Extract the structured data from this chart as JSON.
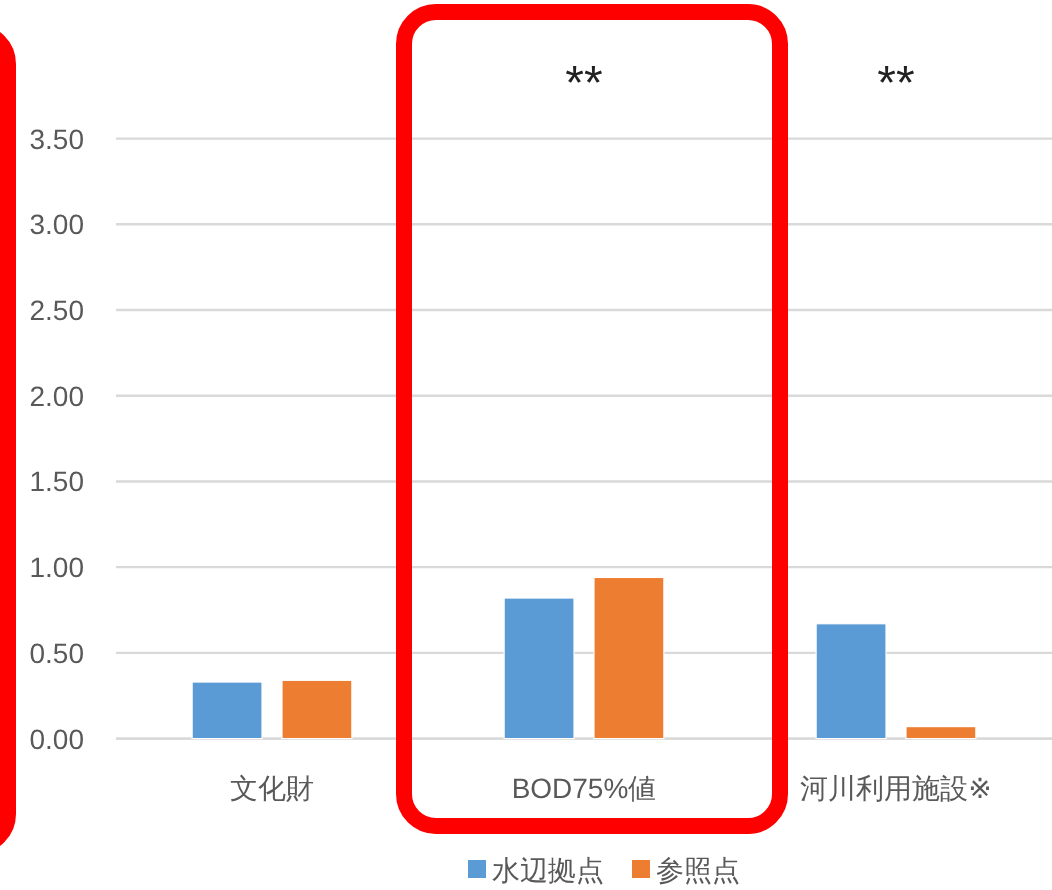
{
  "chart_data": {
    "type": "bar",
    "categories": [
      "文化財",
      "BOD75%値",
      "河川利用施設※"
    ],
    "series": [
      {
        "name": "水辺拠点",
        "color": "#5b9bd5",
        "values": [
          0.33,
          0.82,
          0.67
        ]
      },
      {
        "name": "参照点",
        "color": "#ed7d31",
        "values": [
          0.34,
          0.94,
          0.07
        ]
      }
    ],
    "ylim": [
      0,
      3.5
    ],
    "yticks": [
      {
        "value": 0,
        "label": "0.00"
      },
      {
        "value": 0.5,
        "label": "0.50"
      },
      {
        "value": 1,
        "label": "1.00"
      },
      {
        "value": 1.5,
        "label": "1.50"
      },
      {
        "value": 2,
        "label": "2.00"
      },
      {
        "value": 2.5,
        "label": "2.50"
      },
      {
        "value": 3,
        "label": "3.00"
      },
      {
        "value": 3.5,
        "label": "3.50"
      }
    ],
    "grid": "y",
    "legend": "bottom",
    "annotations": [
      "**",
      "**"
    ]
  }
}
